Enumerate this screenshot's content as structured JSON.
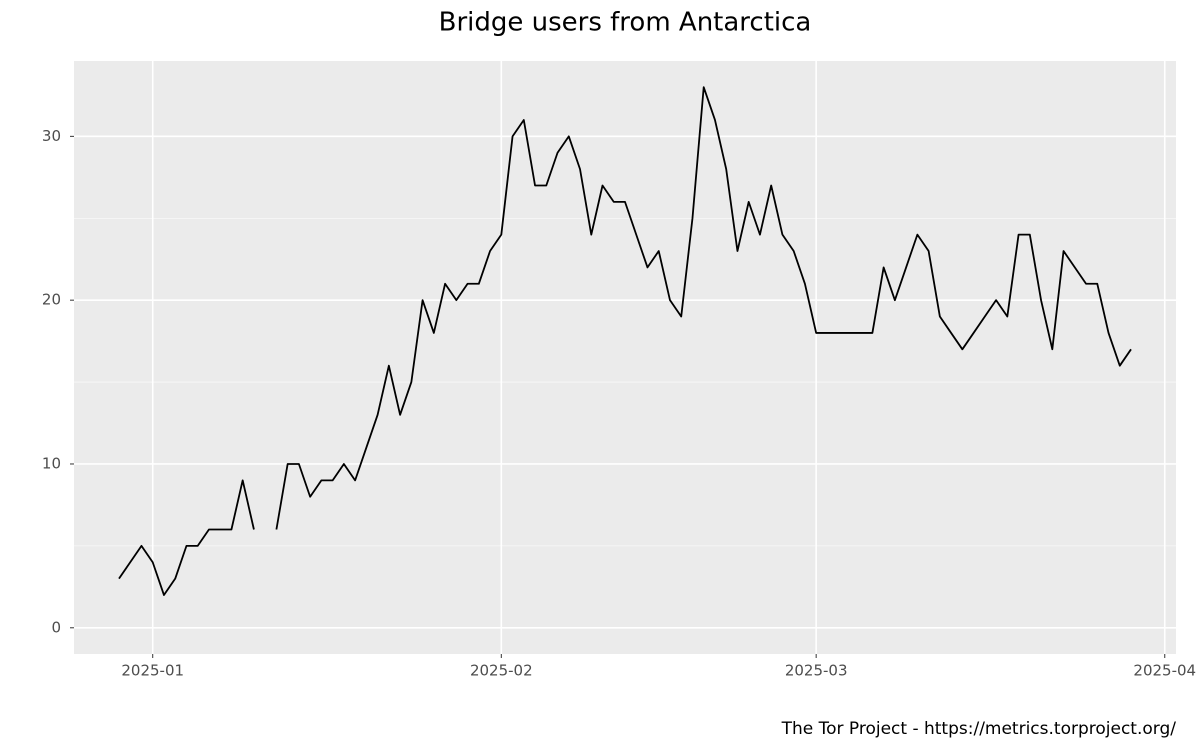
{
  "chart_data": {
    "type": "line",
    "title": "Bridge users from Antarctica",
    "caption": "The Tor Project - https://metrics.torproject.org/",
    "x": [
      "2024-12-29",
      "2024-12-30",
      "2024-12-31",
      "2025-01-01",
      "2025-01-02",
      "2025-01-03",
      "2025-01-04",
      "2025-01-05",
      "2025-01-06",
      "2025-01-07",
      "2025-01-08",
      "2025-01-09",
      "2025-01-10",
      "2025-01-11",
      "2025-01-12",
      "2025-01-13",
      "2025-01-14",
      "2025-01-15",
      "2025-01-16",
      "2025-01-17",
      "2025-01-18",
      "2025-01-19",
      "2025-01-20",
      "2025-01-21",
      "2025-01-22",
      "2025-01-23",
      "2025-01-24",
      "2025-01-25",
      "2025-01-26",
      "2025-01-27",
      "2025-01-28",
      "2025-01-29",
      "2025-01-30",
      "2025-01-31",
      "2025-02-01",
      "2025-02-02",
      "2025-02-03",
      "2025-02-04",
      "2025-02-05",
      "2025-02-06",
      "2025-02-07",
      "2025-02-08",
      "2025-02-09",
      "2025-02-10",
      "2025-02-11",
      "2025-02-12",
      "2025-02-13",
      "2025-02-14",
      "2025-02-15",
      "2025-02-16",
      "2025-02-17",
      "2025-02-18",
      "2025-02-19",
      "2025-02-20",
      "2025-02-21",
      "2025-02-22",
      "2025-02-23",
      "2025-02-24",
      "2025-02-25",
      "2025-02-26",
      "2025-02-27",
      "2025-02-28",
      "2025-03-01",
      "2025-03-02",
      "2025-03-03",
      "2025-03-04",
      "2025-03-05",
      "2025-03-06",
      "2025-03-07",
      "2025-03-08",
      "2025-03-09",
      "2025-03-10",
      "2025-03-11",
      "2025-03-12",
      "2025-03-13",
      "2025-03-14",
      "2025-03-15",
      "2025-03-16",
      "2025-03-17",
      "2025-03-18",
      "2025-03-19",
      "2025-03-20",
      "2025-03-21",
      "2025-03-22",
      "2025-03-23",
      "2025-03-24",
      "2025-03-25",
      "2025-03-26",
      "2025-03-27",
      "2025-03-28",
      "2025-03-29"
    ],
    "series": [
      {
        "name": "users",
        "color": "#000000",
        "values": [
          3,
          4,
          5,
          4,
          2,
          3,
          5,
          5,
          6,
          6,
          6,
          9,
          6,
          null,
          6,
          10,
          10,
          8,
          9,
          9,
          10,
          9,
          11,
          13,
          16,
          13,
          15,
          20,
          18,
          21,
          20,
          21,
          21,
          23,
          24,
          30,
          31,
          27,
          27,
          29,
          30,
          28,
          24,
          27,
          26,
          26,
          24,
          22,
          23,
          20,
          19,
          25,
          33,
          31,
          28,
          23,
          26,
          24,
          27,
          24,
          23,
          21,
          18,
          18,
          18,
          18,
          18,
          18,
          22,
          20,
          22,
          24,
          23,
          19,
          18,
          17,
          18,
          19,
          20,
          19,
          24,
          24,
          20,
          17,
          23,
          22,
          21,
          21,
          18,
          16,
          17
        ]
      }
    ],
    "xlim": [
      "2024-12-25",
      "2025-04-02"
    ],
    "xticks": [
      {
        "value": "2025-01-01",
        "label": "2025-01"
      },
      {
        "value": "2025-02-01",
        "label": "2025-02"
      },
      {
        "value": "2025-03-01",
        "label": "2025-03"
      },
      {
        "value": "2025-04-01",
        "label": "2025-04"
      }
    ],
    "ylim": [
      -1.6,
      34.6
    ],
    "yticks": [
      0,
      10,
      20,
      30
    ],
    "y_minor_ticks": [
      5,
      15,
      25
    ],
    "grid": true
  }
}
